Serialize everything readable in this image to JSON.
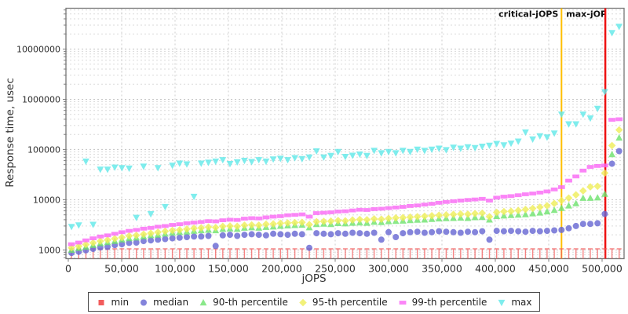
{
  "chart_data": {
    "type": "scatter",
    "title": "",
    "xlabel": "jOPS",
    "ylabel": "Response time, usec",
    "y_scale": "log",
    "grid": true,
    "legend_position": "bottom",
    "xlim": [
      -2200,
      520600
    ],
    "ylim": [
      670,
      65000000
    ],
    "x_ticks": [
      0,
      50000,
      100000,
      150000,
      200000,
      250000,
      300000,
      350000,
      400000,
      450000,
      500000
    ],
    "x_tick_labels": [
      "0",
      "50,000",
      "100,000",
      "150,000",
      "200,000",
      "250,000",
      "300,000",
      "350,000",
      "400,000",
      "450,000",
      "500,000"
    ],
    "y_ticks": [
      1000,
      10000,
      100000,
      1000000,
      10000000
    ],
    "y_tick_labels": [
      "1000",
      "10000",
      "100000",
      "1000000",
      "10000000"
    ],
    "annotations": [
      {
        "label": "critical-jOPS",
        "x": 462000,
        "color": "#ffbf00",
        "width": 2
      },
      {
        "label": "max-jOPS",
        "x": 503000,
        "color": "#ee1111",
        "width": 2.5
      }
    ],
    "x": [
      3000,
      9750,
      16500,
      23250,
      30000,
      36750,
      43500,
      50250,
      57000,
      63750,
      70500,
      77250,
      84000,
      90750,
      97500,
      104250,
      111000,
      117750,
      124500,
      131250,
      138000,
      144750,
      151500,
      158250,
      165000,
      171750,
      178500,
      185250,
      192000,
      198750,
      205500,
      212250,
      219000,
      225750,
      232500,
      239250,
      246000,
      252750,
      259500,
      266250,
      273000,
      279750,
      286500,
      293250,
      300000,
      306750,
      313500,
      320250,
      327000,
      333750,
      340500,
      347250,
      354000,
      360750,
      367500,
      374250,
      381000,
      387750,
      394500,
      401250,
      408000,
      414750,
      421500,
      428250,
      435000,
      441750,
      448500,
      455250,
      462000,
      468750,
      475500,
      482250,
      489000,
      495750,
      502500,
      509250,
      516000
    ],
    "series": [
      {
        "id": "min",
        "name": "min",
        "color": "#f25c5c",
        "marker": "tick",
        "legend_marker": "square",
        "values": [
          1050,
          1050,
          1050,
          1050,
          1050,
          1050,
          1050,
          1050,
          1050,
          1050,
          1050,
          1050,
          1050,
          1050,
          1050,
          1050,
          1050,
          1050,
          1050,
          1050,
          1050,
          1050,
          1050,
          1050,
          1050,
          1050,
          1050,
          1050,
          1050,
          1050,
          1050,
          1050,
          1050,
          1050,
          1050,
          1050,
          1050,
          1050,
          1050,
          1050,
          1050,
          1050,
          1050,
          1050,
          1050,
          1050,
          1050,
          1050,
          1050,
          1050,
          1050,
          1050,
          1050,
          1050,
          1050,
          1050,
          1050,
          1050,
          1050,
          1050,
          1050,
          1050,
          1050,
          1050,
          1050,
          1050,
          1050,
          1050,
          1050,
          1050,
          1050,
          1050,
          1050,
          1050,
          1050,
          1050,
          1050
        ]
      },
      {
        "id": "median",
        "name": "median",
        "color": "#6565d2",
        "marker": "circle",
        "legend_marker": "circle",
        "values": [
          870,
          920,
          980,
          1050,
          1120,
          1150,
          1250,
          1300,
          1380,
          1400,
          1500,
          1550,
          1600,
          1650,
          1700,
          1750,
          1800,
          1850,
          1850,
          1900,
          1200,
          1950,
          2000,
          1900,
          2000,
          2050,
          2000,
          1950,
          2100,
          2050,
          2000,
          2100,
          2050,
          1100,
          2150,
          2100,
          2050,
          2150,
          2100,
          2200,
          2150,
          2100,
          2200,
          1600,
          2250,
          1800,
          2150,
          2250,
          2300,
          2200,
          2250,
          2350,
          2300,
          2250,
          2200,
          2300,
          2250,
          2350,
          1600,
          2400,
          2350,
          2400,
          2350,
          2300,
          2400,
          2350,
          2400,
          2450,
          2500,
          2700,
          3000,
          3300,
          3300,
          3400,
          5200,
          52000,
          93000
        ]
      },
      {
        "id": "p90",
        "name": "90-th percentile",
        "color": "#6de26d",
        "marker": "triangle-up",
        "legend_marker": "triangle-up",
        "values": [
          1000,
          1080,
          1150,
          1250,
          1350,
          1420,
          1500,
          1600,
          1700,
          1750,
          1850,
          1950,
          2000,
          2100,
          2200,
          2250,
          2300,
          2400,
          2450,
          2500,
          2450,
          2600,
          2650,
          2600,
          2750,
          2800,
          2750,
          2850,
          2900,
          3000,
          3050,
          3100,
          3150,
          2800,
          3250,
          3300,
          3250,
          3400,
          3350,
          3450,
          3500,
          3450,
          3600,
          3550,
          3700,
          3750,
          3800,
          3900,
          3950,
          4000,
          4100,
          4200,
          4250,
          4300,
          4350,
          4300,
          4450,
          4500,
          4000,
          4700,
          4800,
          4900,
          5000,
          5100,
          5300,
          5500,
          5800,
          6200,
          6800,
          7600,
          8400,
          10800,
          10800,
          11000,
          13000,
          80000,
          171000
        ]
      },
      {
        "id": "p95",
        "name": "95-th percentile",
        "color": "#efee58",
        "marker": "diamond",
        "legend_marker": "diamond",
        "values": [
          1100,
          1180,
          1280,
          1380,
          1500,
          1580,
          1680,
          1780,
          1900,
          1950,
          2050,
          2150,
          2250,
          2350,
          2450,
          2500,
          2600,
          2700,
          2750,
          2850,
          2800,
          2950,
          3000,
          2950,
          3100,
          3150,
          3100,
          3250,
          3300,
          3400,
          3450,
          3500,
          3550,
          3200,
          3650,
          3700,
          3750,
          3850,
          3800,
          3950,
          4050,
          4000,
          4150,
          4100,
          4250,
          4350,
          4400,
          4500,
          4600,
          4700,
          4800,
          4900,
          5000,
          5100,
          5200,
          5150,
          5300,
          5400,
          4600,
          5600,
          5800,
          5900,
          6100,
          6400,
          6700,
          7100,
          7600,
          8400,
          9600,
          10800,
          12500,
          15000,
          18000,
          18500,
          34000,
          120000,
          245000
        ]
      },
      {
        "id": "p99",
        "name": "99-th percentile",
        "color": "#fa66f5",
        "marker": "hbar",
        "legend_marker": "hbar",
        "values": [
          1300,
          1400,
          1550,
          1700,
          1850,
          1950,
          2100,
          2250,
          2400,
          2500,
          2650,
          2750,
          2900,
          3000,
          3150,
          3250,
          3400,
          3500,
          3600,
          3750,
          3700,
          3900,
          4000,
          3950,
          4200,
          4300,
          4250,
          4450,
          4600,
          4700,
          4900,
          5000,
          5100,
          4600,
          5400,
          5500,
          5600,
          5800,
          5900,
          6100,
          6300,
          6250,
          6500,
          6600,
          6800,
          7000,
          7200,
          7500,
          7700,
          8000,
          8300,
          8700,
          9000,
          9300,
          9600,
          9900,
          10100,
          10400,
          9600,
          11000,
          11500,
          11800,
          12300,
          12800,
          13300,
          13900,
          14600,
          16000,
          17800,
          24000,
          29000,
          38000,
          45000,
          47000,
          48000,
          390000,
          400000
        ]
      },
      {
        "id": "max",
        "name": "max",
        "color": "#5fe8e8",
        "marker": "triangle-down",
        "legend_marker": "triangle-down",
        "values": [
          2900,
          3100,
          58000,
          3200,
          40000,
          40000,
          44000,
          43000,
          42000,
          4400,
          46000,
          5200,
          43000,
          7200,
          48000,
          53000,
          51000,
          11500,
          53000,
          55000,
          58000,
          62000,
          52000,
          56000,
          60000,
          57000,
          62000,
          58000,
          64000,
          66000,
          62000,
          68000,
          65000,
          70000,
          93000,
          70000,
          75000,
          90000,
          72000,
          76000,
          80000,
          75000,
          95000,
          85000,
          90000,
          85000,
          95000,
          90000,
          100000,
          95000,
          100000,
          105000,
          98000,
          110000,
          105000,
          112000,
          108000,
          115000,
          120000,
          130000,
          122000,
          132000,
          145000,
          220000,
          160000,
          185000,
          175000,
          210000,
          500000,
          320000,
          320000,
          500000,
          420000,
          650000,
          1400000,
          21000000,
          28000000
        ]
      }
    ]
  }
}
